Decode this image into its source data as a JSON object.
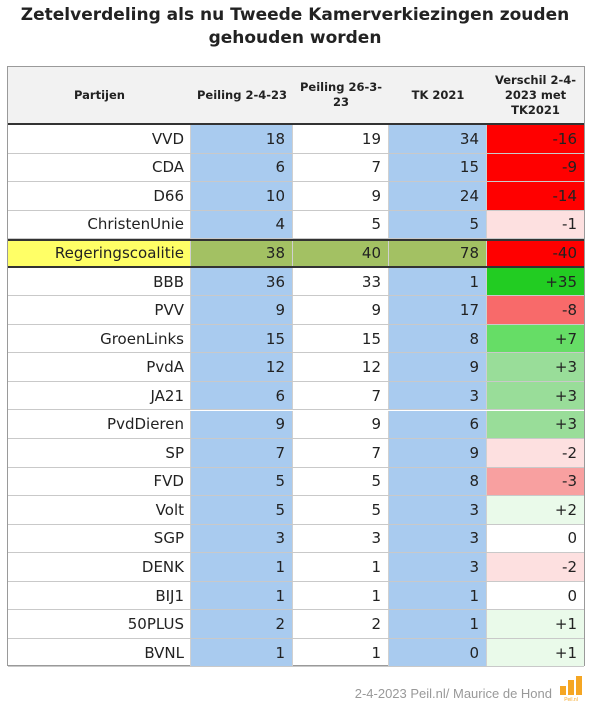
{
  "title_line1": "Zetelverdeling als nu Tweede Kamerverkiezingen zouden",
  "title_line2": "gehouden worden",
  "footer": "2-4-2023 Peil.nl/ Maurice de Hond",
  "logo_text": "Peil.nl",
  "chart_data": {
    "type": "table",
    "columns": [
      "Partijen",
      "Peiling 2-4-23",
      "Peiling 26-3-23",
      "TK 2021",
      "Verschil 2-4-2023 met TK2021"
    ],
    "column_display": [
      "Partijen",
      "Peiling 2-4-23",
      "Peiling 26-3-\n23",
      "TK 2021",
      "Verschil 2-4-\n2023 met\nTK2021"
    ],
    "rows": [
      {
        "party": "VVD",
        "p1": 18,
        "p2": 19,
        "tk": 34,
        "diff": "-16",
        "diff_color": "#ff0000"
      },
      {
        "party": "CDA",
        "p1": 6,
        "p2": 7,
        "tk": 15,
        "diff": "-9",
        "diff_color": "#ff0000"
      },
      {
        "party": "D66",
        "p1": 10,
        "p2": 9,
        "tk": 24,
        "diff": "-14",
        "diff_color": "#ff0000"
      },
      {
        "party": "ChristenUnie",
        "p1": 4,
        "p2": 5,
        "tk": 5,
        "diff": "-1",
        "diff_color": "#fde0e0"
      },
      {
        "party": "Regeringscoalitie",
        "p1": 38,
        "p2": 40,
        "tk": 78,
        "diff": "-40",
        "diff_color": "#ff0000",
        "coalition": true
      },
      {
        "party": "BBB",
        "p1": 36,
        "p2": 33,
        "tk": 1,
        "diff": "+35",
        "diff_color": "#22cc22"
      },
      {
        "party": "PVV",
        "p1": 9,
        "p2": 9,
        "tk": 17,
        "diff": "-8",
        "diff_color": "#f86a6a"
      },
      {
        "party": "GroenLinks",
        "p1": 15,
        "p2": 15,
        "tk": 8,
        "diff": "+7",
        "diff_color": "#66dd66"
      },
      {
        "party": "PvdA",
        "p1": 12,
        "p2": 12,
        "tk": 9,
        "diff": "+3",
        "diff_color": "#99dd99"
      },
      {
        "party": "JA21",
        "p1": 6,
        "p2": 7,
        "tk": 3,
        "diff": "+3",
        "diff_color": "#99dd99"
      },
      {
        "party": "PvdDieren",
        "p1": 9,
        "p2": 9,
        "tk": 6,
        "diff": "+3",
        "diff_color": "#99dd99"
      },
      {
        "party": "SP",
        "p1": 7,
        "p2": 7,
        "tk": 9,
        "diff": "-2",
        "diff_color": "#fde0e0"
      },
      {
        "party": "FVD",
        "p1": 5,
        "p2": 5,
        "tk": 8,
        "diff": "-3",
        "diff_color": "#f8a0a0"
      },
      {
        "party": "Volt",
        "p1": 5,
        "p2": 5,
        "tk": 3,
        "diff": "+2",
        "diff_color": "#eafaea"
      },
      {
        "party": "SGP",
        "p1": 3,
        "p2": 3,
        "tk": 3,
        "diff": "0",
        "diff_color": "#ffffff"
      },
      {
        "party": "DENK",
        "p1": 1,
        "p2": 1,
        "tk": 3,
        "diff": "-2",
        "diff_color": "#fde0e0"
      },
      {
        "party": "BIJ1",
        "p1": 1,
        "p2": 1,
        "tk": 1,
        "diff": "0",
        "diff_color": "#ffffff"
      },
      {
        "party": "50PLUS",
        "p1": 2,
        "p2": 2,
        "tk": 1,
        "diff": "+1",
        "diff_color": "#eafaea"
      },
      {
        "party": "BVNL",
        "p1": 1,
        "p2": 1,
        "tk": 0,
        "diff": "+1",
        "diff_color": "#eafaea"
      }
    ],
    "colors": {
      "poll_column": "#a9cbef",
      "tk_column": "#a9cbef",
      "coalition_party": "#ffff66",
      "coalition_poll": "#a3c163",
      "header_bg": "#f2f2f2",
      "logo": "#f5a623"
    }
  }
}
